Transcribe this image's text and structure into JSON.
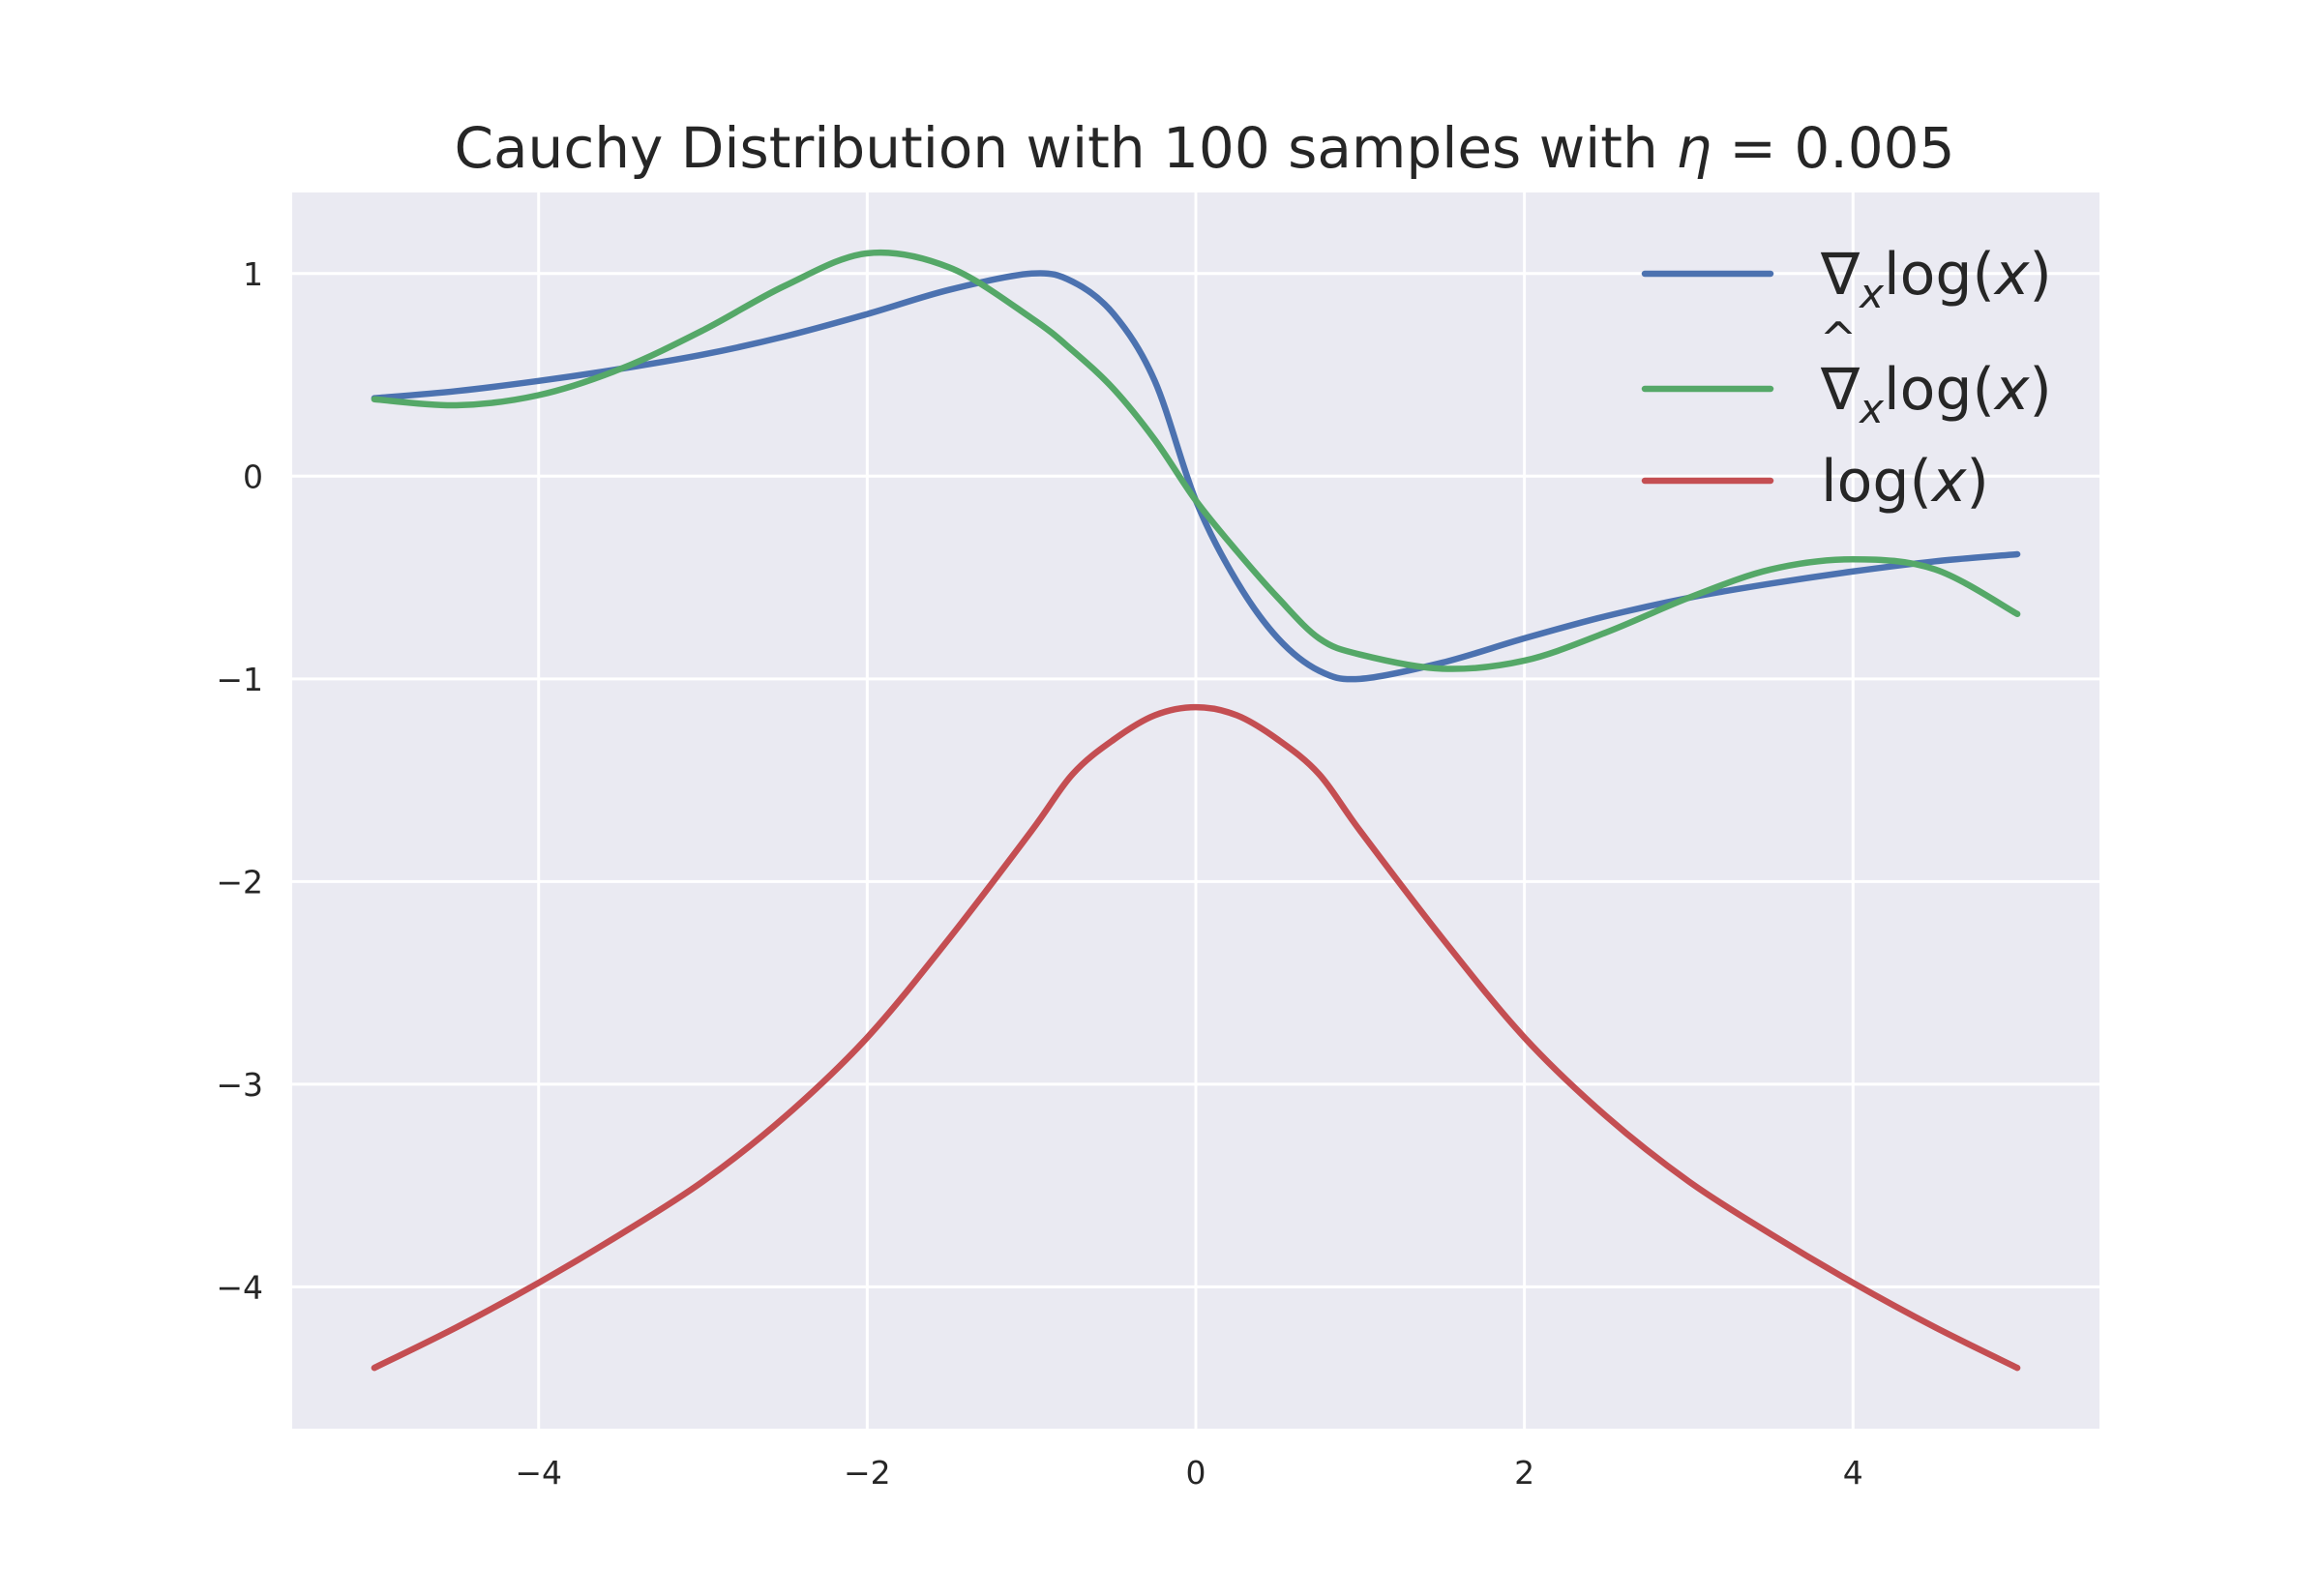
{
  "chart_data": {
    "type": "line",
    "title": {
      "prefix": "Cauchy Distribution with 100 samples with ",
      "symbol": "η",
      "suffix": " = 0.005"
    },
    "xlabel": "",
    "ylabel": "",
    "xlim": [
      -5.5,
      5.5
    ],
    "ylim": [
      -4.7,
      1.4
    ],
    "xticks": [
      {
        "value": -4,
        "label": "−4"
      },
      {
        "value": -2,
        "label": "−2"
      },
      {
        "value": 0,
        "label": "0"
      },
      {
        "value": 2,
        "label": "2"
      },
      {
        "value": 4,
        "label": "4"
      }
    ],
    "yticks": [
      {
        "value": 1,
        "label": "1"
      },
      {
        "value": 0,
        "label": "0"
      },
      {
        "value": -1,
        "label": "−1"
      },
      {
        "value": -2,
        "label": "−2"
      },
      {
        "value": -3,
        "label": "−3"
      },
      {
        "value": -4,
        "label": "−4"
      }
    ],
    "grid": true,
    "legend_position": "top-right",
    "legend": [
      {
        "series": 0,
        "nabla": "∇",
        "hat": "",
        "sub": "x",
        "pre": "log(",
        "var": "x",
        "post": ")"
      },
      {
        "series": 1,
        "nabla": "∇",
        "hat": "^",
        "sub": "x",
        "pre": "log(",
        "var": "x",
        "post": ")"
      },
      {
        "series": 2,
        "nabla": "",
        "hat": "",
        "sub": "",
        "pre": "log(",
        "var": "x",
        "post": ")"
      }
    ],
    "colors": {
      "background": "#eaeaf2",
      "grid": "#ffffff",
      "blue": "#4c72b0",
      "green": "#55a868",
      "red": "#c44e52"
    },
    "x": [
      -5.0,
      -4.5,
      -4.0,
      -3.5,
      -3.0,
      -2.5,
      -2.0,
      -1.5,
      -1.0,
      -0.75,
      -0.5,
      -0.25,
      0.0,
      0.25,
      0.5,
      0.75,
      1.0,
      1.5,
      2.0,
      2.5,
      3.0,
      3.5,
      4.0,
      4.5,
      5.0
    ],
    "series": [
      {
        "color": "#4c72b0",
        "values": [
          0.385,
          0.42,
          0.47,
          0.53,
          0.6,
          0.69,
          0.8,
          0.92,
          1.0,
          0.96,
          0.8,
          0.47,
          -0.12,
          -0.52,
          -0.8,
          -0.96,
          -1.0,
          -0.92,
          -0.8,
          -0.69,
          -0.6,
          -0.53,
          -0.47,
          -0.42,
          -0.385
        ]
      },
      {
        "color": "#55a868",
        "values": [
          0.38,
          0.35,
          0.4,
          0.53,
          0.72,
          0.94,
          1.1,
          1.03,
          0.78,
          0.62,
          0.43,
          0.18,
          -0.12,
          -0.37,
          -0.6,
          -0.8,
          -0.88,
          -0.95,
          -0.91,
          -0.77,
          -0.6,
          -0.46,
          -0.41,
          -0.46,
          -0.68
        ]
      },
      {
        "color": "#c44e52",
        "values": [
          -4.4,
          -4.2,
          -3.98,
          -3.74,
          -3.48,
          -3.16,
          -2.77,
          -2.28,
          -1.75,
          -1.47,
          -1.3,
          -1.18,
          -1.14,
          -1.18,
          -1.3,
          -1.47,
          -1.75,
          -2.28,
          -2.77,
          -3.16,
          -3.48,
          -3.74,
          -3.98,
          -4.2,
          -4.4
        ]
      }
    ]
  }
}
